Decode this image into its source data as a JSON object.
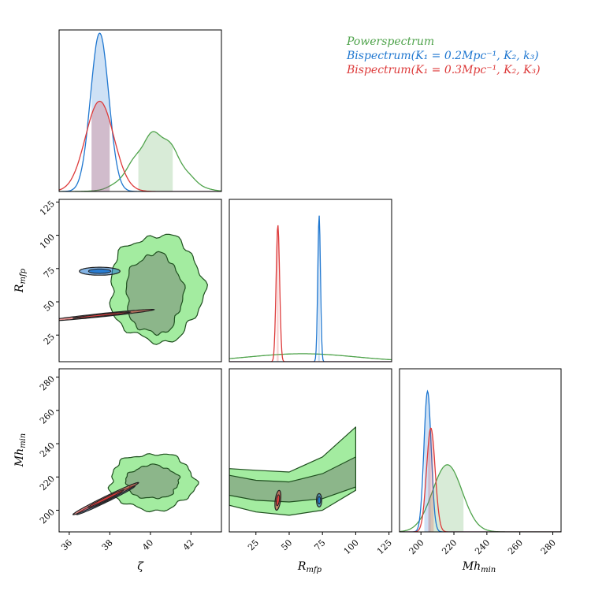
{
  "chart_data": {
    "type": "corner",
    "parameters": [
      "ζ",
      "R_mfp",
      "Mh_min"
    ],
    "axis_labels": {
      "zeta": "ζ",
      "rmfp": "R",
      "rmfp_sub": "mfp",
      "mh": "Mh",
      "mh_sub": "min"
    },
    "ranges": {
      "zeta": [
        35.5,
        43.5
      ],
      "rmfp": [
        5,
        127
      ],
      "mh": [
        187,
        285
      ]
    },
    "ticks": {
      "zeta": [
        36,
        38,
        40,
        42
      ],
      "rmfp": [
        25,
        50,
        75,
        100,
        125
      ],
      "mh": [
        200,
        220,
        240,
        260,
        280
      ]
    },
    "colors": {
      "power": "#4fa34b",
      "bis1": "#1f77d0",
      "bis2": "#dd3a3a",
      "power_fill_outer": "#a3eca0",
      "power_fill_inner": "#8cb68a",
      "edge_dark": "#1f4f1f"
    },
    "legend": [
      {
        "key": "power",
        "text": "Powerspectrum"
      },
      {
        "key": "bis1",
        "text": "Bispectrum(K₁ = 0.2Mpc⁻¹, K₂, k₃)"
      },
      {
        "key": "bis2",
        "text": "Bispectrum(K₁ = 0.3Mpc⁻¹, K₂, K₃)"
      }
    ],
    "series": [
      {
        "key": "power",
        "marginals": {
          "zeta": {
            "mean": 40.3,
            "sd": 1.05,
            "peak": 0.37,
            "ci": [
              39.4,
              41.1
            ]
          },
          "rmfp": {
            "mean": 60,
            "sd": 40,
            "peak": 0.05,
            "ci": null
          },
          "mh": {
            "mean": 216,
            "sd": 9,
            "peak": 0.42,
            "ci": [
              205,
              226
            ]
          }
        },
        "contours_2d": {
          "zeta_rmfp": {
            "cx": 40.3,
            "cy": 60,
            "rx_outer": 2.3,
            "ry_outer": 40,
            "rx_inner": 1.4,
            "ry_inner": 30
          },
          "zeta_mh": {
            "cx": 40.1,
            "cy": 217,
            "rx_outer": 2.1,
            "ry_outer": 17,
            "rx_inner": 1.3,
            "ry_inner": 10
          },
          "rmfp_mh": {
            "x": [
              5,
              25,
              50,
              75,
              100
            ],
            "y_outer_lo": [
              203,
              199,
              197,
              200,
              212
            ],
            "y_outer_hi": [
              225,
              224,
              223,
              232,
              250
            ],
            "y_inner_lo": [
              209,
              206,
              205,
              207,
              214
            ],
            "y_inner_hi": [
              221,
              218,
              217,
              222,
              232
            ]
          }
        }
      },
      {
        "key": "bis1",
        "marginals": {
          "zeta": {
            "mean": 37.5,
            "sd": 0.45,
            "peak": 1.0,
            "ci": [
              37.1,
              38.0
            ]
          },
          "rmfp": {
            "mean": 72.5,
            "sd": 1.0,
            "peak": 0.92,
            "ci": [
              71.5,
              73.5
            ]
          },
          "mh": {
            "mean": 204,
            "sd": 2.2,
            "peak": 0.88,
            "ci": [
              202,
              206
            ]
          }
        },
        "contours_2d": {
          "zeta_rmfp": {
            "cx": 37.5,
            "cy": 73,
            "rx": 1.0,
            "ry": 3.0,
            "rot": 0
          },
          "zeta_mh": {
            "cx": 37.8,
            "cy": 206,
            "rx": 1.6,
            "ry": 1.2,
            "rot": -26
          },
          "rmfp_mh": {
            "cx": 72.5,
            "cy": 206,
            "rx": 2.0,
            "ry": 4.0,
            "rot": 0
          }
        }
      },
      {
        "key": "bis2",
        "marginals": {
          "zeta": {
            "mean": 37.5,
            "sd": 0.7,
            "peak": 0.57,
            "ci": [
              37.1,
              38.0
            ]
          },
          "rmfp": {
            "mean": 41.5,
            "sd": 1.3,
            "peak": 0.86,
            "ci": [
              40.5,
              42.5
            ]
          },
          "mh": {
            "mean": 206,
            "sd": 2.6,
            "peak": 0.65,
            "ci": [
              204,
              208
            ]
          }
        },
        "contours_2d": {
          "zeta_rmfp": {
            "cx": 37.6,
            "cy": 40,
            "rx": 2.6,
            "ry": 1.2,
            "rot": -6
          },
          "zeta_mh": {
            "cx": 37.8,
            "cy": 207,
            "rx": 1.8,
            "ry": 1.3,
            "rot": -26
          },
          "rmfp_mh": {
            "cx": 41.5,
            "cy": 206,
            "rx": 2.0,
            "ry": 6.0,
            "rot": 8
          }
        }
      }
    ]
  }
}
